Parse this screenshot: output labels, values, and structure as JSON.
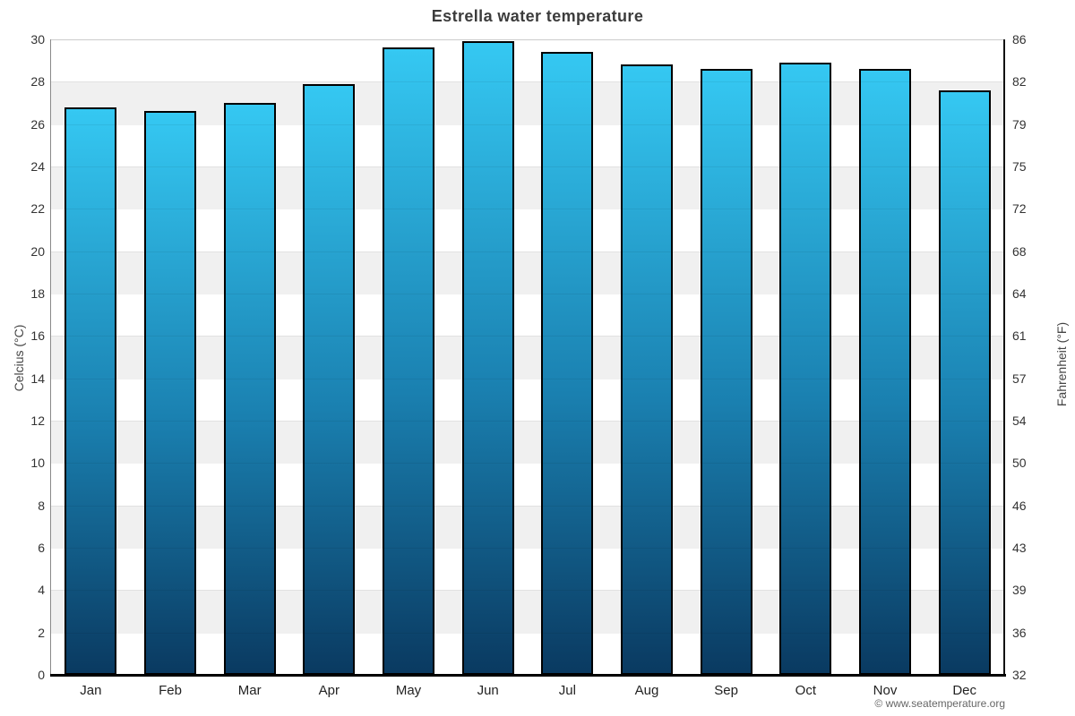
{
  "chart_data": {
    "type": "bar",
    "title": "Estrella water temperature",
    "categories": [
      "Jan",
      "Feb",
      "Mar",
      "Apr",
      "May",
      "Jun",
      "Jul",
      "Aug",
      "Sep",
      "Oct",
      "Nov",
      "Dec"
    ],
    "values": [
      26.8,
      26.6,
      27.0,
      27.9,
      29.6,
      29.9,
      29.4,
      28.8,
      28.6,
      28.9,
      28.6,
      27.6
    ],
    "ylabel_left": "Celcius (°C)",
    "ylabel_right": "Fahrenheit (°F)",
    "ylim": [
      0,
      30
    ],
    "y_ticks_celsius": [
      0,
      2,
      4,
      6,
      8,
      10,
      12,
      14,
      16,
      18,
      20,
      22,
      24,
      26,
      28,
      30
    ],
    "y_ticks_fahrenheit": [
      32,
      36,
      39,
      43,
      46,
      50,
      54,
      57,
      61,
      64,
      68,
      72,
      75,
      79,
      82,
      86
    ],
    "xlabel": "",
    "legend_position": "none",
    "grid": "alternating horizontal bands every 2°C",
    "colors": {
      "bar_gradient_top": "#35c8f2",
      "bar_gradient_bottom": "#0a3a61",
      "bar_border": "#000000",
      "band_gray": "#f0f0f0",
      "band_white": "#ffffff",
      "title_text": "#3c3c3c",
      "tick_text": "#333333"
    },
    "copyright": "© www.seatemperature.org"
  }
}
